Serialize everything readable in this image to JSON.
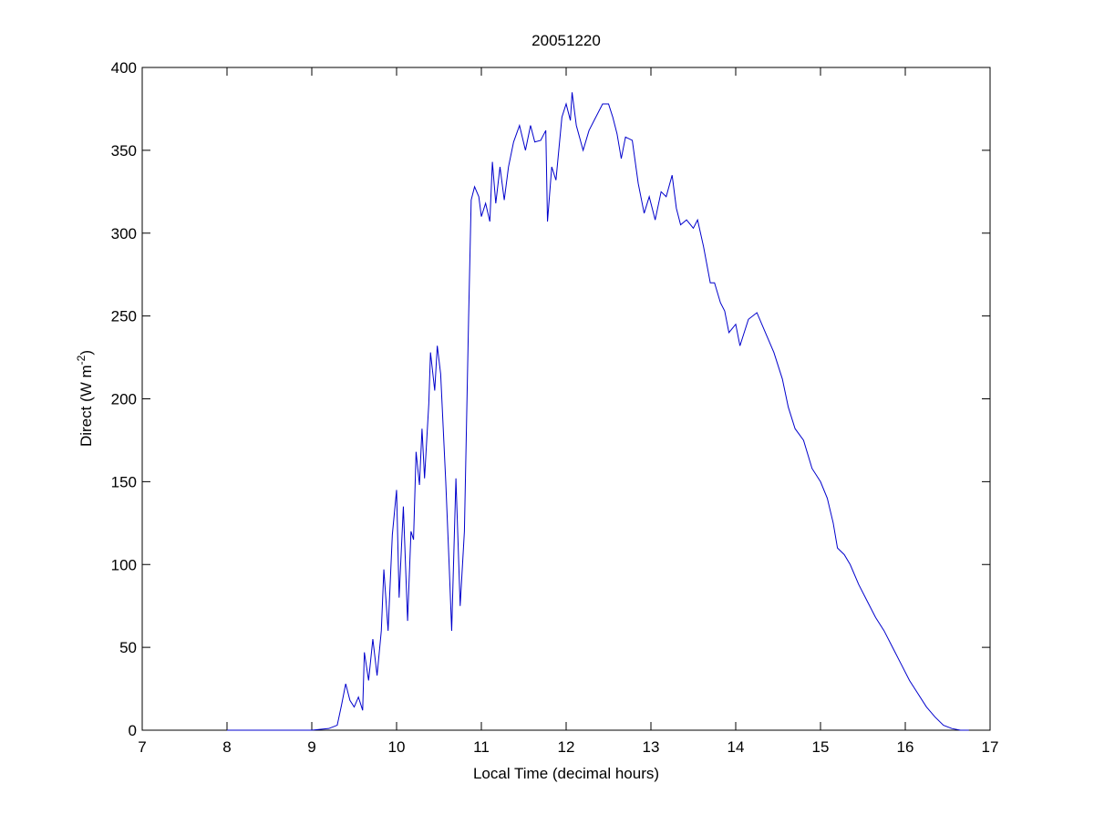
{
  "chart_data": {
    "type": "line",
    "title": "20051220",
    "x_label": "Local Time (decimal hours)",
    "y_label": [
      "Direct (W m",
      "-2",
      ")"
    ],
    "x": [
      8.0,
      9.0,
      9.2,
      9.3,
      9.35,
      9.4,
      9.45,
      9.5,
      9.55,
      9.6,
      9.62,
      9.67,
      9.72,
      9.77,
      9.82,
      9.85,
      9.9,
      9.95,
      10.0,
      10.03,
      10.08,
      10.13,
      10.17,
      10.2,
      10.23,
      10.27,
      10.3,
      10.33,
      10.38,
      10.4,
      10.45,
      10.48,
      10.52,
      10.58,
      10.62,
      10.65,
      10.7,
      10.75,
      10.8,
      10.85,
      10.88,
      10.92,
      10.97,
      11.0,
      11.05,
      11.1,
      11.13,
      11.17,
      11.22,
      11.27,
      11.32,
      11.38,
      11.45,
      11.52,
      11.58,
      11.63,
      11.7,
      11.76,
      11.78,
      11.83,
      11.88,
      11.95,
      12.0,
      12.05,
      12.07,
      12.12,
      12.2,
      12.27,
      12.35,
      12.43,
      12.5,
      12.55,
      12.6,
      12.65,
      12.7,
      12.78,
      12.85,
      12.92,
      12.98,
      13.05,
      13.12,
      13.18,
      13.25,
      13.3,
      13.35,
      13.42,
      13.5,
      13.55,
      13.62,
      13.7,
      13.75,
      13.82,
      13.87,
      13.92,
      14.0,
      14.05,
      14.15,
      14.25,
      14.35,
      14.45,
      14.55,
      14.62,
      14.7,
      14.8,
      14.9,
      15.0,
      15.08,
      15.15,
      15.2,
      15.28,
      15.35,
      15.45,
      15.55,
      15.65,
      15.75,
      15.85,
      15.95,
      16.05,
      16.15,
      16.25,
      16.35,
      16.45,
      16.55,
      16.65,
      16.75
    ],
    "series": [
      {
        "color": "#0000cc",
        "values": [
          0,
          0,
          1,
          3,
          15,
          28,
          18,
          14,
          20,
          12,
          47,
          30,
          55,
          33,
          60,
          97,
          60,
          118,
          145,
          80,
          135,
          66,
          120,
          115,
          168,
          148,
          182,
          152,
          197,
          228,
          205,
          232,
          215,
          150,
          100,
          60,
          152,
          75,
          120,
          250,
          320,
          328,
          322,
          310,
          318,
          307,
          343,
          318,
          340,
          320,
          340,
          355,
          365,
          350,
          365,
          355,
          356,
          362,
          307,
          340,
          332,
          370,
          378,
          368,
          385,
          365,
          350,
          362,
          370,
          378,
          378,
          370,
          360,
          345,
          358,
          356,
          330,
          312,
          322,
          308,
          325,
          322,
          335,
          315,
          305,
          308,
          303,
          308,
          292,
          270,
          270,
          258,
          253,
          240,
          245,
          232,
          248,
          252,
          240,
          228,
          212,
          195,
          182,
          175,
          158,
          150,
          140,
          125,
          110,
          106,
          100,
          88,
          78,
          68,
          60,
          50,
          40,
          30,
          22,
          14,
          8,
          3,
          1,
          0,
          0
        ]
      }
    ],
    "xlim": [
      7,
      17
    ],
    "xticks": [
      7,
      8,
      9,
      10,
      11,
      12,
      13,
      14,
      15,
      16,
      17
    ],
    "ylim": [
      0,
      400
    ],
    "yticks": [
      0,
      50,
      100,
      150,
      200,
      250,
      300,
      350,
      400
    ],
    "grid": false
  }
}
